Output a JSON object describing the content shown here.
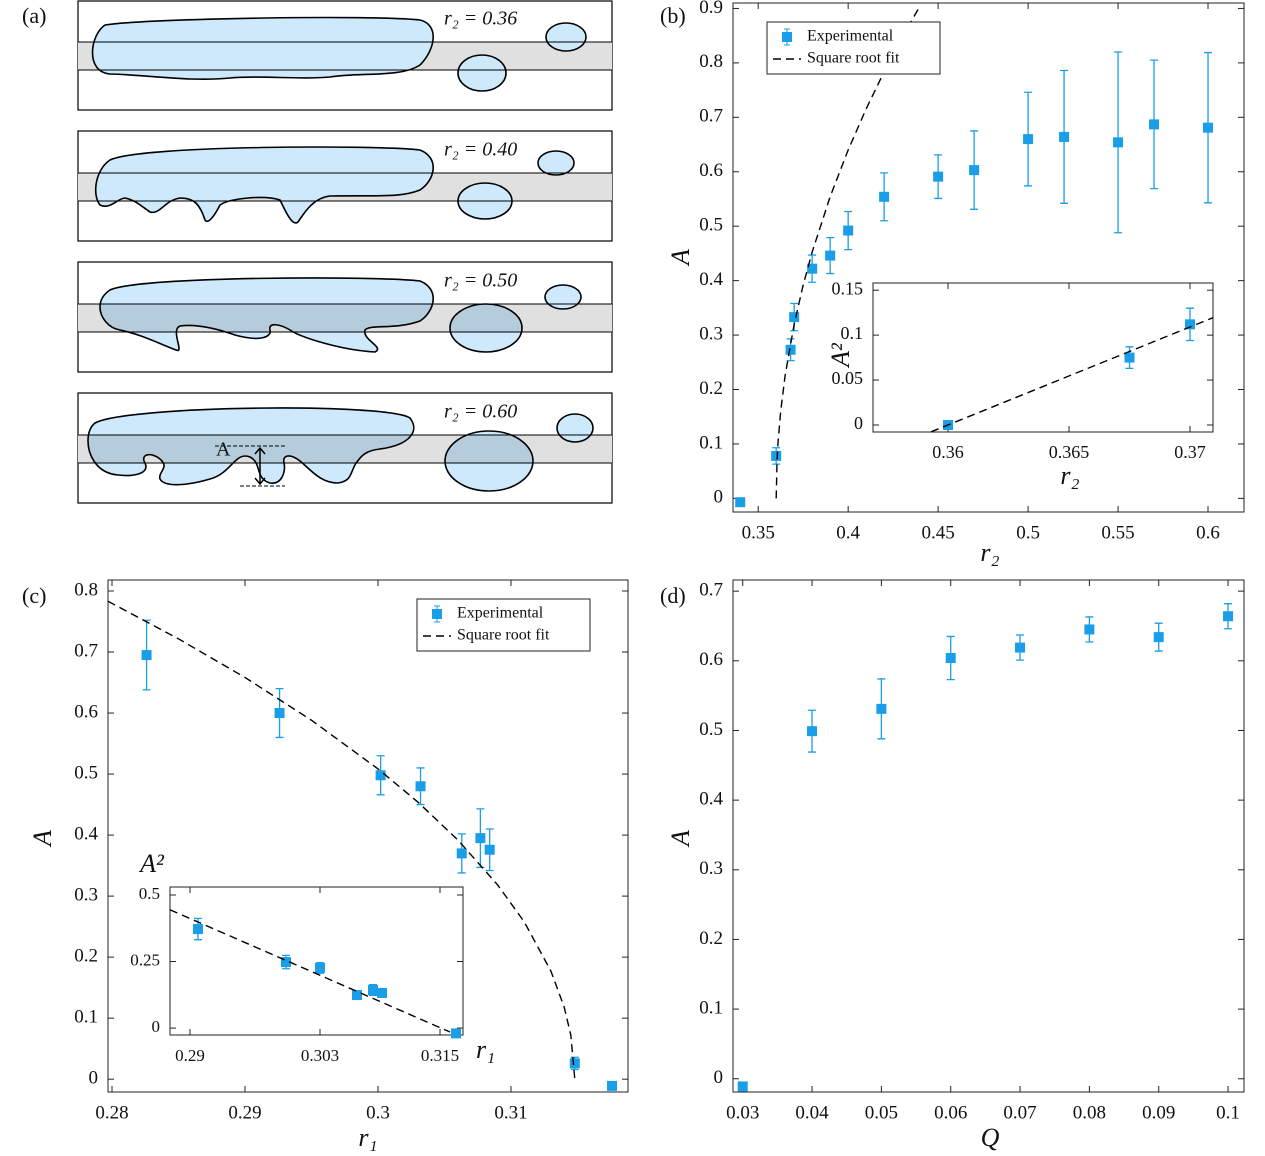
{
  "schematic": {
    "label": "(a)",
    "panels": [
      {
        "label": "r₂ = 0.36"
      },
      {
        "label": "r₂ = 0.40"
      },
      {
        "label": "r₂ = 0.50"
      },
      {
        "label": "r₂ = 0.60"
      }
    ],
    "amplitude_label": "A"
  },
  "chart_data": [
    {
      "type": "scatter",
      "label": "(b)",
      "xlabel": "r₂",
      "ylabel": "A",
      "xlim": [
        0.336,
        0.62
      ],
      "ylim": [
        -0.025,
        0.91
      ],
      "xticks": [
        0.35,
        0.4,
        0.45,
        0.5,
        0.55,
        0.6
      ],
      "yticks": [
        0,
        0.1,
        0.2,
        0.3,
        0.4,
        0.5,
        0.6,
        0.7,
        0.8,
        0.9
      ],
      "legend": "upper left",
      "series": [
        {
          "name": "Experimental",
          "color": "#1a9ee8",
          "x": [
            0.34,
            0.36,
            0.368,
            0.37,
            0.38,
            0.39,
            0.4,
            0.42,
            0.45,
            0.47,
            0.5,
            0.52,
            0.55,
            0.57,
            0.6
          ],
          "values": [
            -0.007,
            0.078,
            0.273,
            0.333,
            0.422,
            0.446,
            0.492,
            0.554,
            0.591,
            0.603,
            0.66,
            0.664,
            0.654,
            0.687,
            0.681
          ],
          "errors": [
            null,
            0.015,
            0.02,
            0.025,
            0.025,
            0.033,
            0.035,
            0.044,
            0.04,
            0.072,
            0.086,
            0.122,
            0.166,
            0.118,
            0.138
          ]
        },
        {
          "name": "Square root fit",
          "color": "#000000",
          "line": "dashed",
          "x": [
            0.36,
            0.3605,
            0.361,
            0.3625,
            0.365,
            0.37,
            0.375,
            0.38,
            0.39,
            0.4,
            0.41,
            0.42,
            0.43,
            0.44
          ],
          "values": [
            0,
            0.0716,
            0.1012,
            0.16,
            0.2263,
            0.32,
            0.3919,
            0.4525,
            0.5543,
            0.64,
            0.7155,
            0.7838,
            0.8466,
            0.9051
          ]
        }
      ],
      "inset": {
        "type": "scatter",
        "xlabel": "r₂",
        "ylabel": "A²",
        "xlim": [
          0.3569,
          0.37095
        ],
        "ylim": [
          -0.0078,
          0.158
        ],
        "xticks": [
          0.36,
          0.365,
          0.37
        ],
        "yticks": [
          0,
          0.05,
          0.1,
          0.15
        ],
        "series": [
          {
            "color": "#1a9ee8",
            "x": [
              0.36,
              0.3675,
              0.37
            ],
            "values": [
              0,
              0.075,
              0.112
            ],
            "errors": [
              null,
              0.012,
              0.018
            ]
          },
          {
            "color": "#000000",
            "line": "dashed",
            "x": [
              0.3593,
              0.37095
            ],
            "values": [
              -0.0076,
              0.1194
            ]
          }
        ]
      }
    },
    {
      "type": "scatter",
      "label": "(c)",
      "xlabel": "r₁",
      "ylabel": "A",
      "xlim": [
        0.2797,
        0.3188
      ],
      "ylim": [
        -0.021,
        0.818
      ],
      "xticks": [
        0.28,
        0.29,
        0.3,
        0.31
      ],
      "yticks": [
        0,
        0.1,
        0.2,
        0.3,
        0.4,
        0.5,
        0.6,
        0.7,
        0.8
      ],
      "legend": "upper right",
      "series": [
        {
          "name": "Experimental",
          "color": "#1a9ee8",
          "x": [
            0.2826,
            0.2926,
            0.3002,
            0.3032,
            0.3063,
            0.3077,
            0.3084,
            0.3148,
            0.3176
          ],
          "values": [
            0.695,
            0.6,
            0.498,
            0.48,
            0.37,
            0.395,
            0.376,
            0.026,
            -0.011
          ],
          "errors": [
            0.057,
            0.04,
            0.032,
            0.03,
            0.032,
            0.048,
            0.034,
            0.01,
            null
          ]
        },
        {
          "name": "Square root fit",
          "color": "#000000",
          "line": "dashed",
          "x": [
            0.2797,
            0.285,
            0.29,
            0.295,
            0.3,
            0.303,
            0.306,
            0.309,
            0.311,
            0.313,
            0.314,
            0.3145,
            0.3148
          ],
          "values": [
            0.7831,
            0.7216,
            0.6583,
            0.5882,
            0.5085,
            0.4541,
            0.3921,
            0.3183,
            0.2577,
            0.1773,
            0.1182,
            0.0724,
            0
          ]
        }
      ],
      "inset": {
        "type": "scatter",
        "xlabel": "r₁",
        "ylabel": "A²",
        "xlim": [
          0.288,
          0.3173
        ],
        "ylim": [
          -0.026,
          0.53
        ],
        "xticks": [
          0.29,
          0.303,
          0.315
        ],
        "yticks": [
          0,
          0.25,
          0.5
        ],
        "series": [
          {
            "color": "#1a9ee8",
            "x": [
              0.2908,
              0.2996,
              0.303,
              0.3067,
              0.3083,
              0.3092,
              0.3166
            ],
            "values": [
              0.372,
              0.248,
              0.226,
              0.124,
              0.143,
              0.132,
              -0.02
            ],
            "errors": [
              0.04,
              0.025,
              0.02,
              0.015,
              0.02,
              0.015,
              null
            ]
          },
          {
            "color": "#000000",
            "line": "dashed",
            "x": [
              0.288,
              0.316
            ],
            "values": [
              0.4444,
              -0.0148
            ]
          }
        ]
      }
    },
    {
      "type": "scatter",
      "label": "(d)",
      "xlabel": "Q",
      "ylabel": "A",
      "xlim": [
        0.0286,
        0.1023
      ],
      "ylim": [
        -0.019,
        0.716
      ],
      "xticks": [
        0.03,
        0.04,
        0.05,
        0.06,
        0.07,
        0.08,
        0.09,
        0.1
      ],
      "yticks": [
        0,
        0.1,
        0.2,
        0.3,
        0.4,
        0.5,
        0.6,
        0.7
      ],
      "series": [
        {
          "color": "#1a9ee8",
          "x": [
            0.03,
            0.04,
            0.05,
            0.06,
            0.07,
            0.08,
            0.09,
            0.1
          ],
          "values": [
            -0.011,
            0.499,
            0.531,
            0.604,
            0.619,
            0.645,
            0.634,
            0.664
          ],
          "errors": [
            null,
            0.03,
            0.043,
            0.031,
            0.018,
            0.018,
            0.02,
            0.018
          ]
        }
      ]
    }
  ]
}
